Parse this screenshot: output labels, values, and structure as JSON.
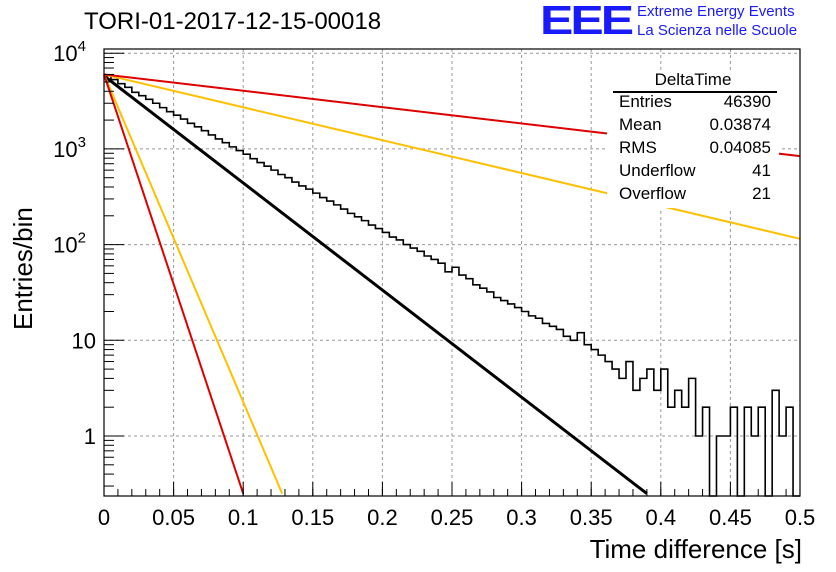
{
  "title": "TORI-01-2017-12-15-00018",
  "logo": {
    "text": "EEE",
    "line1": "Extreme Energy Events",
    "line2": "La Scienza nelle Scuole",
    "color": "#1a1aff"
  },
  "stats": {
    "name": "DeltaTime",
    "rows": [
      {
        "key": "Entries",
        "value": "46390"
      },
      {
        "key": "Mean",
        "value": "0.03874"
      },
      {
        "key": "RMS",
        "value": "0.04085"
      },
      {
        "key": "Underflow",
        "value": "41"
      },
      {
        "key": "Overflow",
        "value": "21"
      }
    ]
  },
  "chart_data": {
    "type": "line",
    "xlabel": "Time difference [s]",
    "ylabel": "Entries/bin",
    "xlim": [
      0,
      0.5
    ],
    "ylim": [
      0.25,
      11000
    ],
    "ylog": true,
    "grid": true,
    "x_ticks": [
      "0",
      "0.05",
      "0.1",
      "0.15",
      "0.2",
      "0.25",
      "0.3",
      "0.35",
      "0.4",
      "0.45",
      "0.5"
    ],
    "y_ticks": [
      {
        "value": 1,
        "label": "1"
      },
      {
        "value": 10,
        "label": "10"
      },
      {
        "value": 100,
        "label": "10",
        "exp": "2"
      },
      {
        "value": 1000,
        "label": "10",
        "exp": "3"
      },
      {
        "value": 10000,
        "label": "10",
        "exp": "4"
      }
    ],
    "histogram": {
      "bin_width": 0.005,
      "color": "#000000",
      "counts": [
        5800,
        5300,
        4800,
        4400,
        3900,
        3600,
        3300,
        3000,
        2700,
        2450,
        2250,
        2050,
        1850,
        1700,
        1550,
        1400,
        1270,
        1160,
        1050,
        960,
        880,
        790,
        720,
        660,
        600,
        540,
        500,
        450,
        410,
        380,
        345,
        310,
        285,
        260,
        235,
        212,
        195,
        178,
        160,
        147,
        134,
        120,
        112,
        100,
        92,
        85,
        76,
        70,
        64,
        52,
        58,
        48,
        44,
        38,
        35,
        32,
        28,
        26,
        24,
        22,
        20,
        18,
        17,
        15,
        14,
        13,
        11,
        10,
        12,
        9,
        8,
        7,
        6,
        5,
        4,
        6,
        3,
        4,
        5,
        3,
        5,
        2,
        3,
        2,
        4,
        1,
        2,
        0,
        1,
        1,
        2,
        0,
        2,
        1,
        2,
        0,
        3,
        1,
        2,
        0
      ]
    },
    "series": [
      {
        "color": "#000000",
        "x": [
          0,
          0.39
        ],
        "y": [
          5800,
          0.25
        ]
      },
      {
        "color": "#ffc000",
        "x": [
          0,
          0.5
        ],
        "y": [
          6000,
          115
        ]
      },
      {
        "color": "#ffc000",
        "x": [
          0,
          0.128
        ],
        "y": [
          6000,
          0.25
        ]
      },
      {
        "color": "#dd0000",
        "x": [
          0,
          0.5
        ],
        "y": [
          6000,
          840
        ]
      },
      {
        "color": "#dd0000",
        "x": [
          0,
          0.1
        ],
        "y": [
          6000,
          0.25
        ]
      }
    ]
  }
}
